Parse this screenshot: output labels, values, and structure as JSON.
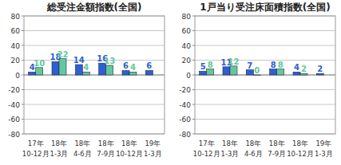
{
  "chart_data": [
    {
      "type": "bar",
      "title": "総受注金額指数(全国)",
      "categories": [
        "17年\n10-12月",
        "18年\n1-3月",
        "18年\n4-6月",
        "18年\n7-9月",
        "18年\n10-12月",
        "19年\n1-3月"
      ],
      "series": [
        {
          "color": "#2f5fd0",
          "values": [
            4,
            18,
            14,
            16,
            6,
            6
          ]
        },
        {
          "color": "#66c79a",
          "values": [
            10,
            22,
            4,
            13,
            4,
            null
          ]
        }
      ],
      "ylim": [
        -80,
        80
      ],
      "yticks": [
        -80,
        -60,
        -40,
        -20,
        0,
        20,
        40,
        60,
        80
      ],
      "grid": true,
      "data_labels": true
    },
    {
      "type": "bar",
      "title": "1戸当り受注床面積指数(全国)",
      "categories": [
        "17年\n10-12月",
        "18年\n1-3月",
        "18年\n4-6月",
        "18年\n7-9月",
        "18年\n10-12月",
        "19年\n1-3月"
      ],
      "series": [
        {
          "color": "#2f5fd0",
          "values": [
            5,
            11,
            7,
            8,
            4,
            2
          ]
        },
        {
          "color": "#66c79a",
          "values": [
            8,
            12,
            0,
            8,
            2,
            null
          ]
        }
      ],
      "ylim": [
        -80,
        80
      ],
      "yticks": [
        -80,
        -60,
        -40,
        -20,
        0,
        20,
        40,
        60,
        80
      ],
      "grid": true,
      "data_labels": true
    }
  ]
}
